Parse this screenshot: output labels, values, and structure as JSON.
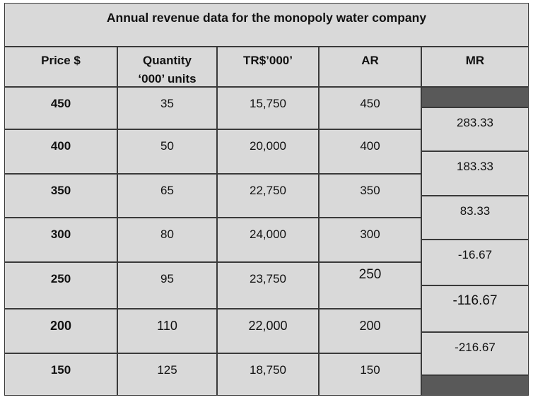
{
  "title": "Annual revenue data for the monopoly water company",
  "headers": {
    "price": "Price $",
    "quantity_line1": "Quantity",
    "quantity_line2": "‘000’ units",
    "tr": "TR$’000’",
    "ar": "AR",
    "mr": "MR"
  },
  "rows": [
    {
      "price": "450",
      "quantity": "35",
      "tr": "15,750",
      "ar": "450"
    },
    {
      "price": "400",
      "quantity": "50",
      "tr": "20,000",
      "ar": "400"
    },
    {
      "price": "350",
      "quantity": "65",
      "tr": "22,750",
      "ar": "350"
    },
    {
      "price": "300",
      "quantity": "80",
      "tr": "24,000",
      "ar": "300"
    },
    {
      "price": "250",
      "quantity": "95",
      "tr": "23,750",
      "ar": "250"
    },
    {
      "price": "200",
      "quantity": "110",
      "tr": "22,000",
      "ar": "200"
    },
    {
      "price": "150",
      "quantity": "125",
      "tr": "18,750",
      "ar": "150"
    }
  ],
  "mr_values": [
    "283.33",
    "183.33",
    "83.33",
    "-16.67",
    "-116.67",
    "-216.67"
  ],
  "colors": {
    "cell_fill": "#d9d9d9",
    "shaded_fill": "#595959",
    "border": "#3a3a3a"
  }
}
